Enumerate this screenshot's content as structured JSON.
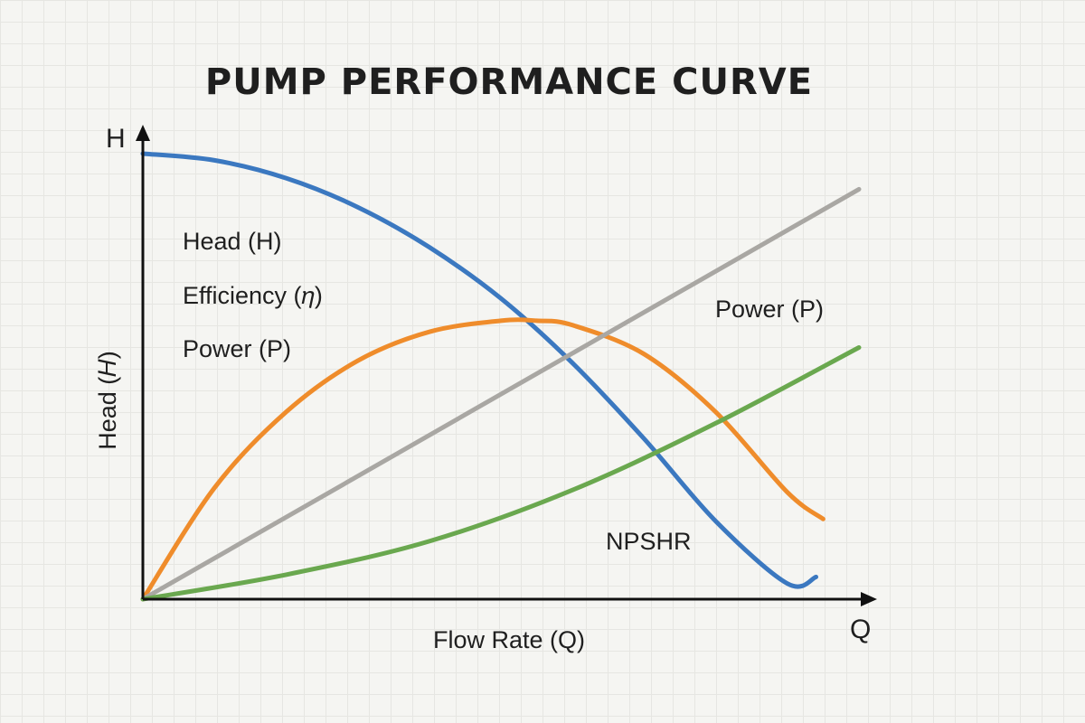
{
  "chart_data": {
    "type": "line",
    "title": "PUMP PERFORMANCE CURVE",
    "xlabel": "Flow Rate (Q)",
    "ylabel": "Head (𝐻)",
    "x_axis_letter": "Q",
    "y_axis_letter": "H",
    "xlim": [
      0,
      100
    ],
    "ylim": [
      0,
      100
    ],
    "grid": true,
    "series": [
      {
        "color": "#3b78c0",
        "x": [
          0,
          10,
          20,
          30,
          40,
          50,
          60,
          70,
          80,
          90,
          94
        ],
        "values": [
          100,
          98.5,
          94.5,
          88,
          79,
          67.5,
          53,
          36,
          17.5,
          3.5,
          5
        ]
      },
      {
        "color": "#ef8c2b",
        "x": [
          0,
          10,
          20,
          30,
          40,
          50,
          55,
          60,
          70,
          80,
          90,
          95
        ],
        "values": [
          0,
          25,
          42,
          53.5,
          60,
          62.5,
          62.5,
          61.5,
          55,
          42,
          24,
          18
        ]
      },
      {
        "color": "#a9a7a3",
        "x": [
          0,
          100
        ],
        "values": [
          0,
          92
        ]
      },
      {
        "color": "#6aa84f",
        "x": [
          0,
          20,
          40,
          60,
          80,
          100
        ],
        "values": [
          0,
          5.5,
          13,
          24.5,
          39.5,
          56.5
        ]
      }
    ],
    "annotations": [
      "Head (H)",
      "Efficiency (𝜂)",
      "Power (P)",
      "Power (P)",
      "NPSHR"
    ]
  }
}
